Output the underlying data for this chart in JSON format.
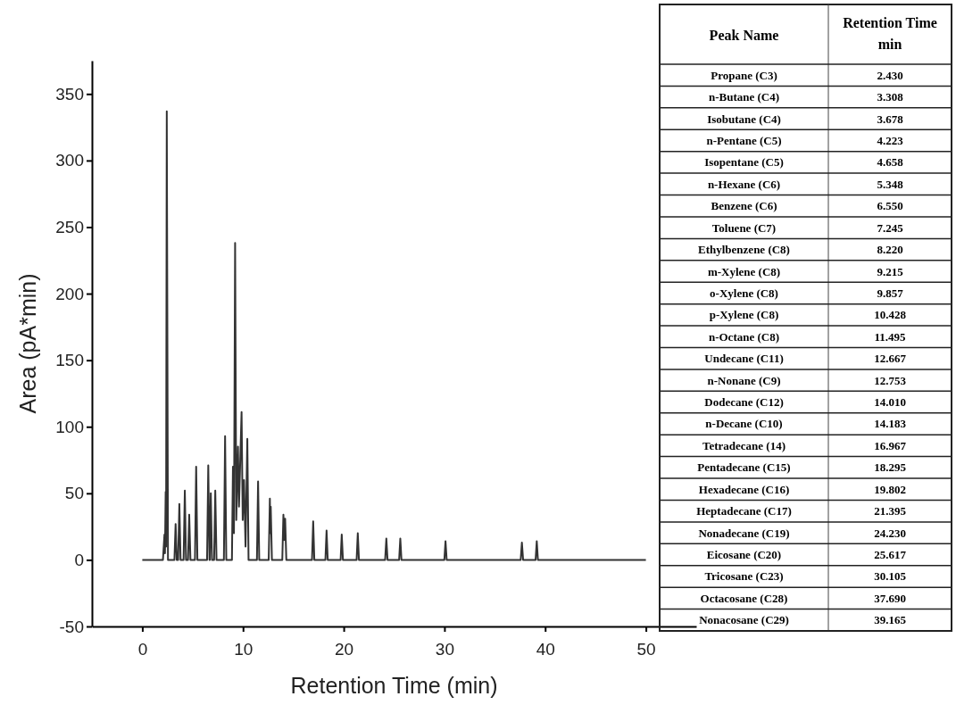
{
  "chart_data": [
    {
      "type": "line",
      "xlabel": "Retention Time (min)",
      "ylabel": "Area (pA*min)",
      "xlim": [
        -5,
        55
      ],
      "ylim": [
        -50,
        375
      ],
      "xticks": [
        0,
        10,
        20,
        30,
        40,
        50
      ],
      "yticks": [
        -50,
        0,
        50,
        100,
        150,
        200,
        250,
        300,
        350
      ],
      "marker": "none",
      "line_style": "solid",
      "series": [
        {
          "color": "#333333",
          "x": [
            0,
            2.05,
            2.2,
            2.25,
            2.32,
            2.36,
            2.43,
            2.55,
            3.19,
            3.308,
            3.42,
            3.56,
            3.678,
            3.8,
            4.1,
            4.223,
            4.34,
            4.54,
            4.658,
            4.78,
            5.23,
            5.348,
            5.47,
            6.43,
            6.55,
            6.67,
            6.7,
            6.8,
            6.92,
            7.13,
            7.245,
            7.37,
            8.1,
            8.22,
            8.34,
            8.9,
            9.0,
            9.1,
            9.215,
            9.33,
            9.5,
            9.6,
            9.857,
            9.97,
            10.1,
            10.25,
            10.428,
            10.55,
            11.38,
            11.495,
            11.61,
            12.55,
            12.667,
            12.71,
            12.753,
            12.87,
            13.9,
            14.01,
            14.1,
            14.183,
            14.3,
            16.85,
            16.967,
            17.08,
            18.18,
            18.295,
            18.41,
            19.69,
            19.802,
            19.92,
            21.28,
            21.395,
            21.51,
            24.11,
            24.23,
            24.35,
            25.5,
            25.617,
            25.73,
            29.99,
            30.105,
            30.22,
            37.57,
            37.69,
            37.81,
            39.05,
            39.165,
            39.28,
            50
          ],
          "values": [
            0,
            0,
            19,
            5,
            51,
            10,
            337,
            0,
            0,
            27,
            0,
            0,
            42,
            0,
            0,
            52,
            0,
            0,
            34,
            0,
            0,
            70,
            0,
            0,
            71,
            0,
            0,
            50,
            0,
            0,
            52,
            0,
            0,
            93,
            0,
            0,
            70,
            20,
            238,
            30,
            85,
            40,
            111,
            30,
            60,
            10,
            91,
            0,
            0,
            59,
            0,
            0,
            46,
            20,
            40,
            0,
            0,
            34,
            15,
            31,
            0,
            0,
            29,
            0,
            0,
            22,
            0,
            0,
            19,
            0,
            0,
            20,
            0,
            0,
            16,
            0,
            0,
            16,
            0,
            0,
            14,
            0,
            0,
            13,
            0,
            0,
            14,
            0,
            0
          ]
        }
      ]
    },
    {
      "type": "other",
      "annotations": [
        "Peak Name",
        "Retention Time min",
        "Propane (C3)",
        "2.430",
        "n-Butane (C4)",
        "3.308",
        "Isobutane (C4)",
        "3.678",
        "n-Pentane (C5)",
        "4.223",
        "Isopentane (C5)",
        "4.658",
        "n-Hexane (C6)",
        "5.348",
        "Benzene (C6)",
        "6.550",
        "Toluene (C7)",
        "7.245",
        "Ethylbenzene (C8)",
        "8.220",
        "m-Xylene (C8)",
        "9.215",
        "o-Xylene (C8)",
        "9.857",
        "p-Xylene (C8)",
        "10.428",
        "n-Octane (C8)",
        "11.495",
        "Undecane (C11)",
        "12.667",
        "n-Nonane (C9)",
        "12.753",
        "Dodecane (C12)",
        "14.010",
        "n-Decane (C10)",
        "14.183",
        "Tetradecane (14)",
        "16.967",
        "Pentadecane (C15)",
        "18.295",
        "Hexadecane (C16)",
        "19.802",
        "Heptadecane (C17)",
        "21.395",
        "Nonadecane (C19)",
        "24.230",
        "Eicosane (C20)",
        "25.617",
        "Tricosane (C23)",
        "30.105",
        "Octacosane (C28)",
        "37.690",
        "Nonacosane (C29)",
        "39.165"
      ]
    }
  ]
}
